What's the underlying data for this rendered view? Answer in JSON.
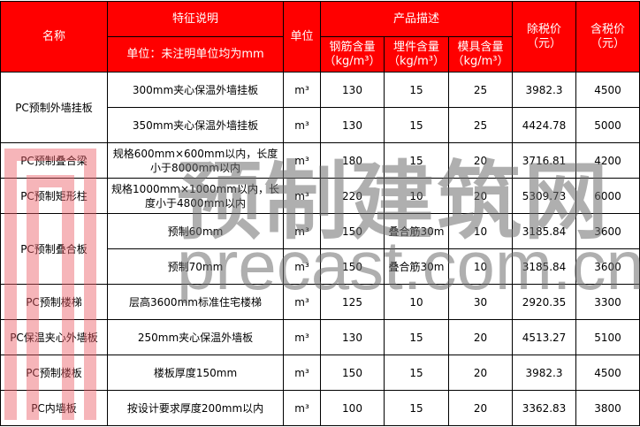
{
  "header": {
    "name": "名称",
    "feature": "特征说明",
    "feature_sub": "单位：未注明单位均为mm",
    "unit": "单位",
    "product": "产品描述",
    "steel": "钢筋含量（kg/m³）",
    "embed": "埋件含量（kg/m³）",
    "mold": "模具含量（kg/m³）",
    "price_ex": "除税价（元）",
    "price_inc": "含税价（元）"
  },
  "rows": [
    {
      "name": "PC预制外墙挂板",
      "spec": "300mm夹心保温外墙挂板",
      "unit": "m³",
      "steel": "130",
      "embed": "15",
      "mold": "25",
      "ex": "3982.3",
      "inc": "4500"
    },
    {
      "spec": "350mm夹心保温外墙挂板",
      "unit": "m³",
      "steel": "130",
      "embed": "15",
      "mold": "25",
      "ex": "4424.78",
      "inc": "5000"
    },
    {
      "name": "PC预制叠合梁",
      "spec": "规格600mm×600mm以内，长度小于8000mm以内",
      "unit": "m³",
      "steel": "180",
      "embed": "15",
      "mold": "20",
      "ex": "3716.81",
      "inc": "4200"
    },
    {
      "name": "PC预制矩形柱",
      "spec": "规格1000mm×1000mm以内，长度小于4800mm以内",
      "unit": "m³",
      "steel": "220",
      "embed": "10",
      "mold": "20",
      "ex": "5309.73",
      "inc": "6000"
    },
    {
      "name": "PC预制叠合板",
      "spec": "预制60mm",
      "unit": "m³",
      "steel": "150",
      "embed": "叠合筋30m",
      "mold": "10",
      "ex": "3185.84",
      "inc": "3600"
    },
    {
      "spec": "预制70mm",
      "unit": "m³",
      "steel": "150",
      "embed": "叠合筋30m",
      "mold": "10",
      "ex": "3185.84",
      "inc": "3600"
    },
    {
      "name": "PC预制楼梯",
      "spec": "层高3600mm标准住宅楼梯",
      "unit": "m³",
      "steel": "125",
      "embed": "10",
      "mold": "30",
      "ex": "2920.35",
      "inc": "3300"
    },
    {
      "name": "PC保温夹心外墙板",
      "spec": "250mm夹心保温外墙板",
      "unit": "m³",
      "steel": "130",
      "embed": "15",
      "mold": "20",
      "ex": "4513.27",
      "inc": "5100"
    },
    {
      "name": "PC预制楼板",
      "spec": "楼板厚度150mm",
      "unit": "m³",
      "steel": "150",
      "embed": "15",
      "mold": "20",
      "ex": "3982.3",
      "inc": "4500"
    },
    {
      "name": "PC内墙板",
      "spec": "按设计要求厚度200mm以内",
      "unit": "m³",
      "steel": "100",
      "embed": "15",
      "mold": "20",
      "ex": "3362.83",
      "inc": "3800"
    }
  ],
  "watermark": {
    "cn": "预制建筑网",
    "en": "precast.com.cn"
  }
}
